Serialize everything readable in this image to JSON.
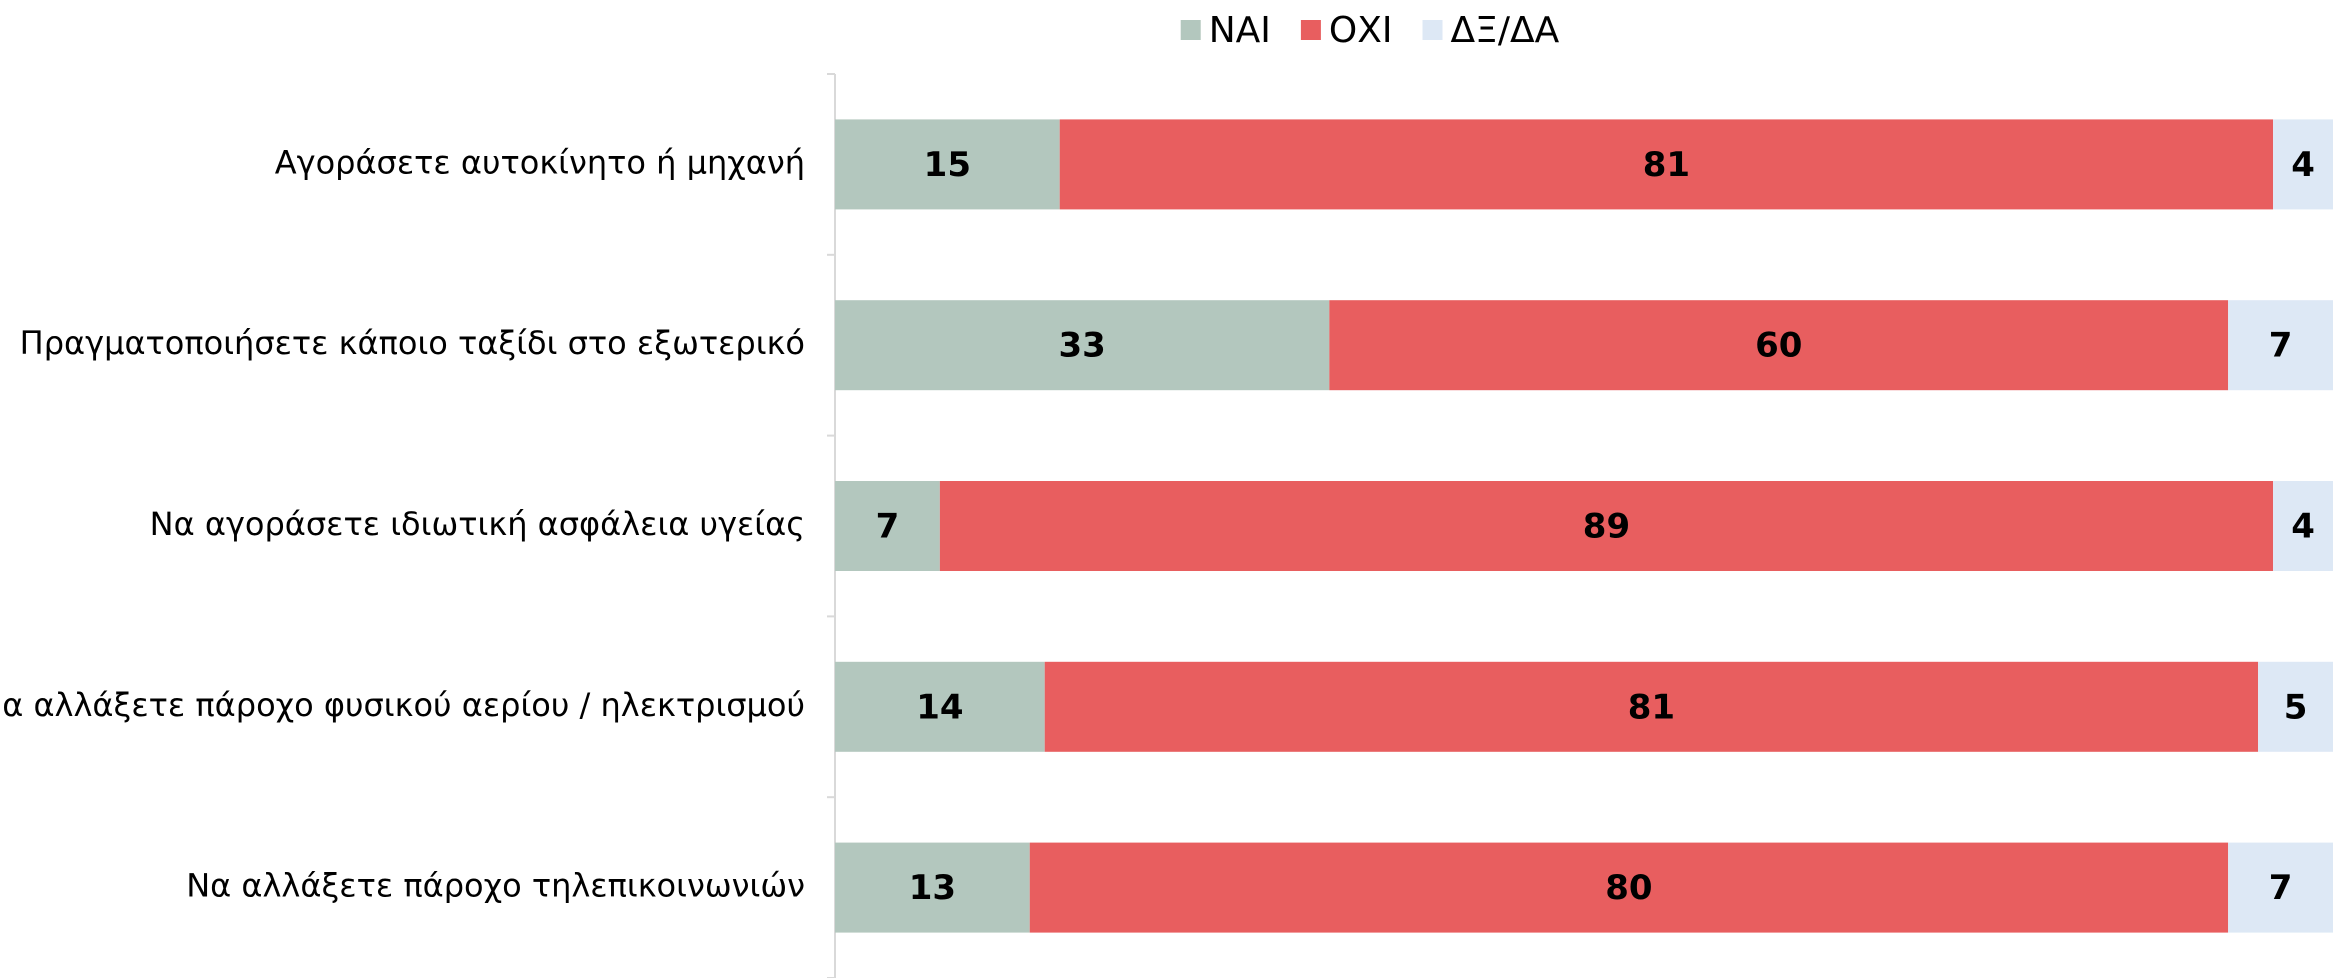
{
  "chart_data": {
    "type": "stacked-barh",
    "categories": [
      "Αγοράσετε αυτοκίνητο ή μηχανή",
      "Πραγματοποιήσετε κάποιο ταξίδι στο εξωτερικό",
      "Να αγοράσετε ιδιωτική ασφάλεια υγείας",
      "Να αλλάξετε πάροχο φυσικού αερίου / ηλεκτρισμού",
      "Να αλλάξετε πάροχο τηλεπικοινωνιών"
    ],
    "series": [
      {
        "name": "ΝΑΙ",
        "color": "#b3c7be",
        "values": [
          15,
          33,
          7,
          14,
          13
        ]
      },
      {
        "name": "ΟΧΙ",
        "color": "#e85e5f",
        "values": [
          81,
          60,
          89,
          81,
          80
        ]
      },
      {
        "name": "ΔΞ/ΔΑ",
        "color": "#dde8f5",
        "values": [
          4,
          7,
          4,
          5,
          7
        ]
      }
    ],
    "xlim": [
      0,
      100
    ],
    "legend": "top"
  }
}
